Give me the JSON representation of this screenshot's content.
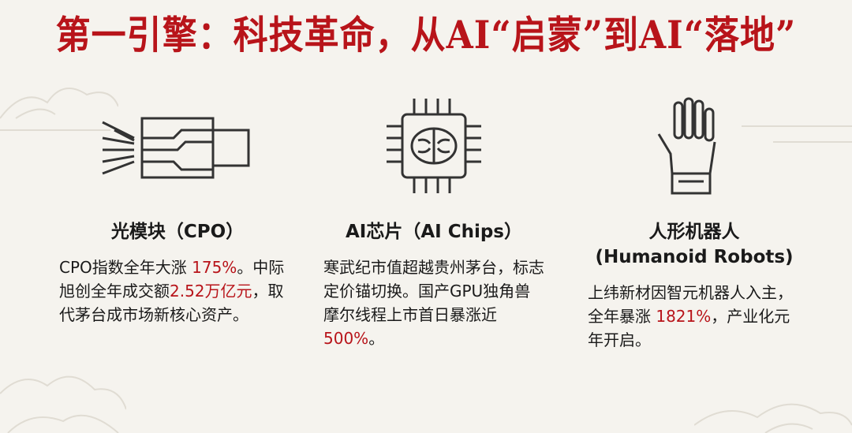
{
  "title": "第一引擎：科技革命，从AI“启蒙”到AI“落地”",
  "accent_color": "#b8141a",
  "columns": [
    {
      "icon": "optical-module-icon",
      "heading": "光模块（CPO）",
      "heading2": "",
      "segments": [
        {
          "t": "CPO指数全年大涨 "
        },
        {
          "t": "175%",
          "hl": true
        },
        {
          "t": "。中际旭创全年成交额"
        },
        {
          "t": "2.52万亿元",
          "hl": true
        },
        {
          "t": "，取代茅台成市场新核心资产。"
        }
      ]
    },
    {
      "icon": "ai-chip-brain-icon",
      "heading": "AI芯片（AI Chips）",
      "heading2": "",
      "segments": [
        {
          "t": "寒武纪市值超越贵州茅台，标志定价锚切换。国产GPU独角兽摩尔线程上市首日暴涨近 "
        },
        {
          "t": "500%",
          "hl": true
        },
        {
          "t": "。"
        }
      ]
    },
    {
      "icon": "robot-hand-icon",
      "heading": "人形机器人",
      "heading2": "(Humanoid Robots)",
      "segments": [
        {
          "t": "上纬新材因智元机器人入主，全年暴涨 "
        },
        {
          "t": "1821%",
          "hl": true
        },
        {
          "t": "，产业化元年开启。"
        }
      ]
    }
  ]
}
